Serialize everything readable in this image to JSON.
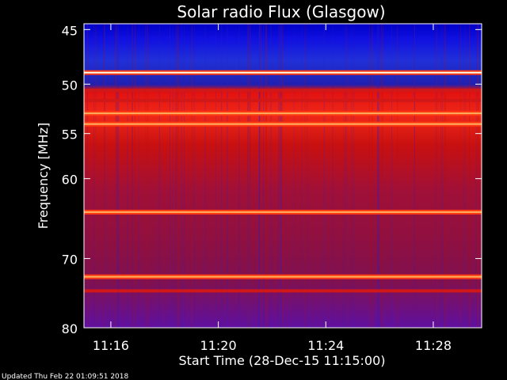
{
  "chart_data": {
    "type": "heatmap",
    "title": "Solar radio Flux (Glasgow)",
    "ylabel": "Frequency [MHz]",
    "xlabel": "Start Time (28-Dec-15 11:15:00)",
    "yticks": [
      45,
      50,
      55,
      60,
      70,
      80
    ],
    "ylim": [
      44.5,
      80
    ],
    "y_scale": "log",
    "xticks": [
      "11:16",
      "11:20",
      "11:24",
      "11:28"
    ],
    "xtick_minutes": [
      1,
      5,
      9,
      13
    ],
    "xlim_minutes": [
      0,
      14.8
    ],
    "grid": false,
    "colormap": "blue-red-yellow-white",
    "bands": [
      {
        "freq": 48.9,
        "level": "high"
      },
      {
        "freq": 50.6,
        "level": "mid"
      },
      {
        "freq": 51.6,
        "level": "mid"
      },
      {
        "freq": 52.9,
        "level": "high"
      },
      {
        "freq": 54.0,
        "level": "high"
      },
      {
        "freq": 64.0,
        "level": "high"
      },
      {
        "freq": 72.5,
        "level": "high"
      },
      {
        "freq": 74.5,
        "level": "mid"
      }
    ]
  },
  "footer": {
    "updated": "Updated Thu Feb 22 01:09:51 2018"
  }
}
